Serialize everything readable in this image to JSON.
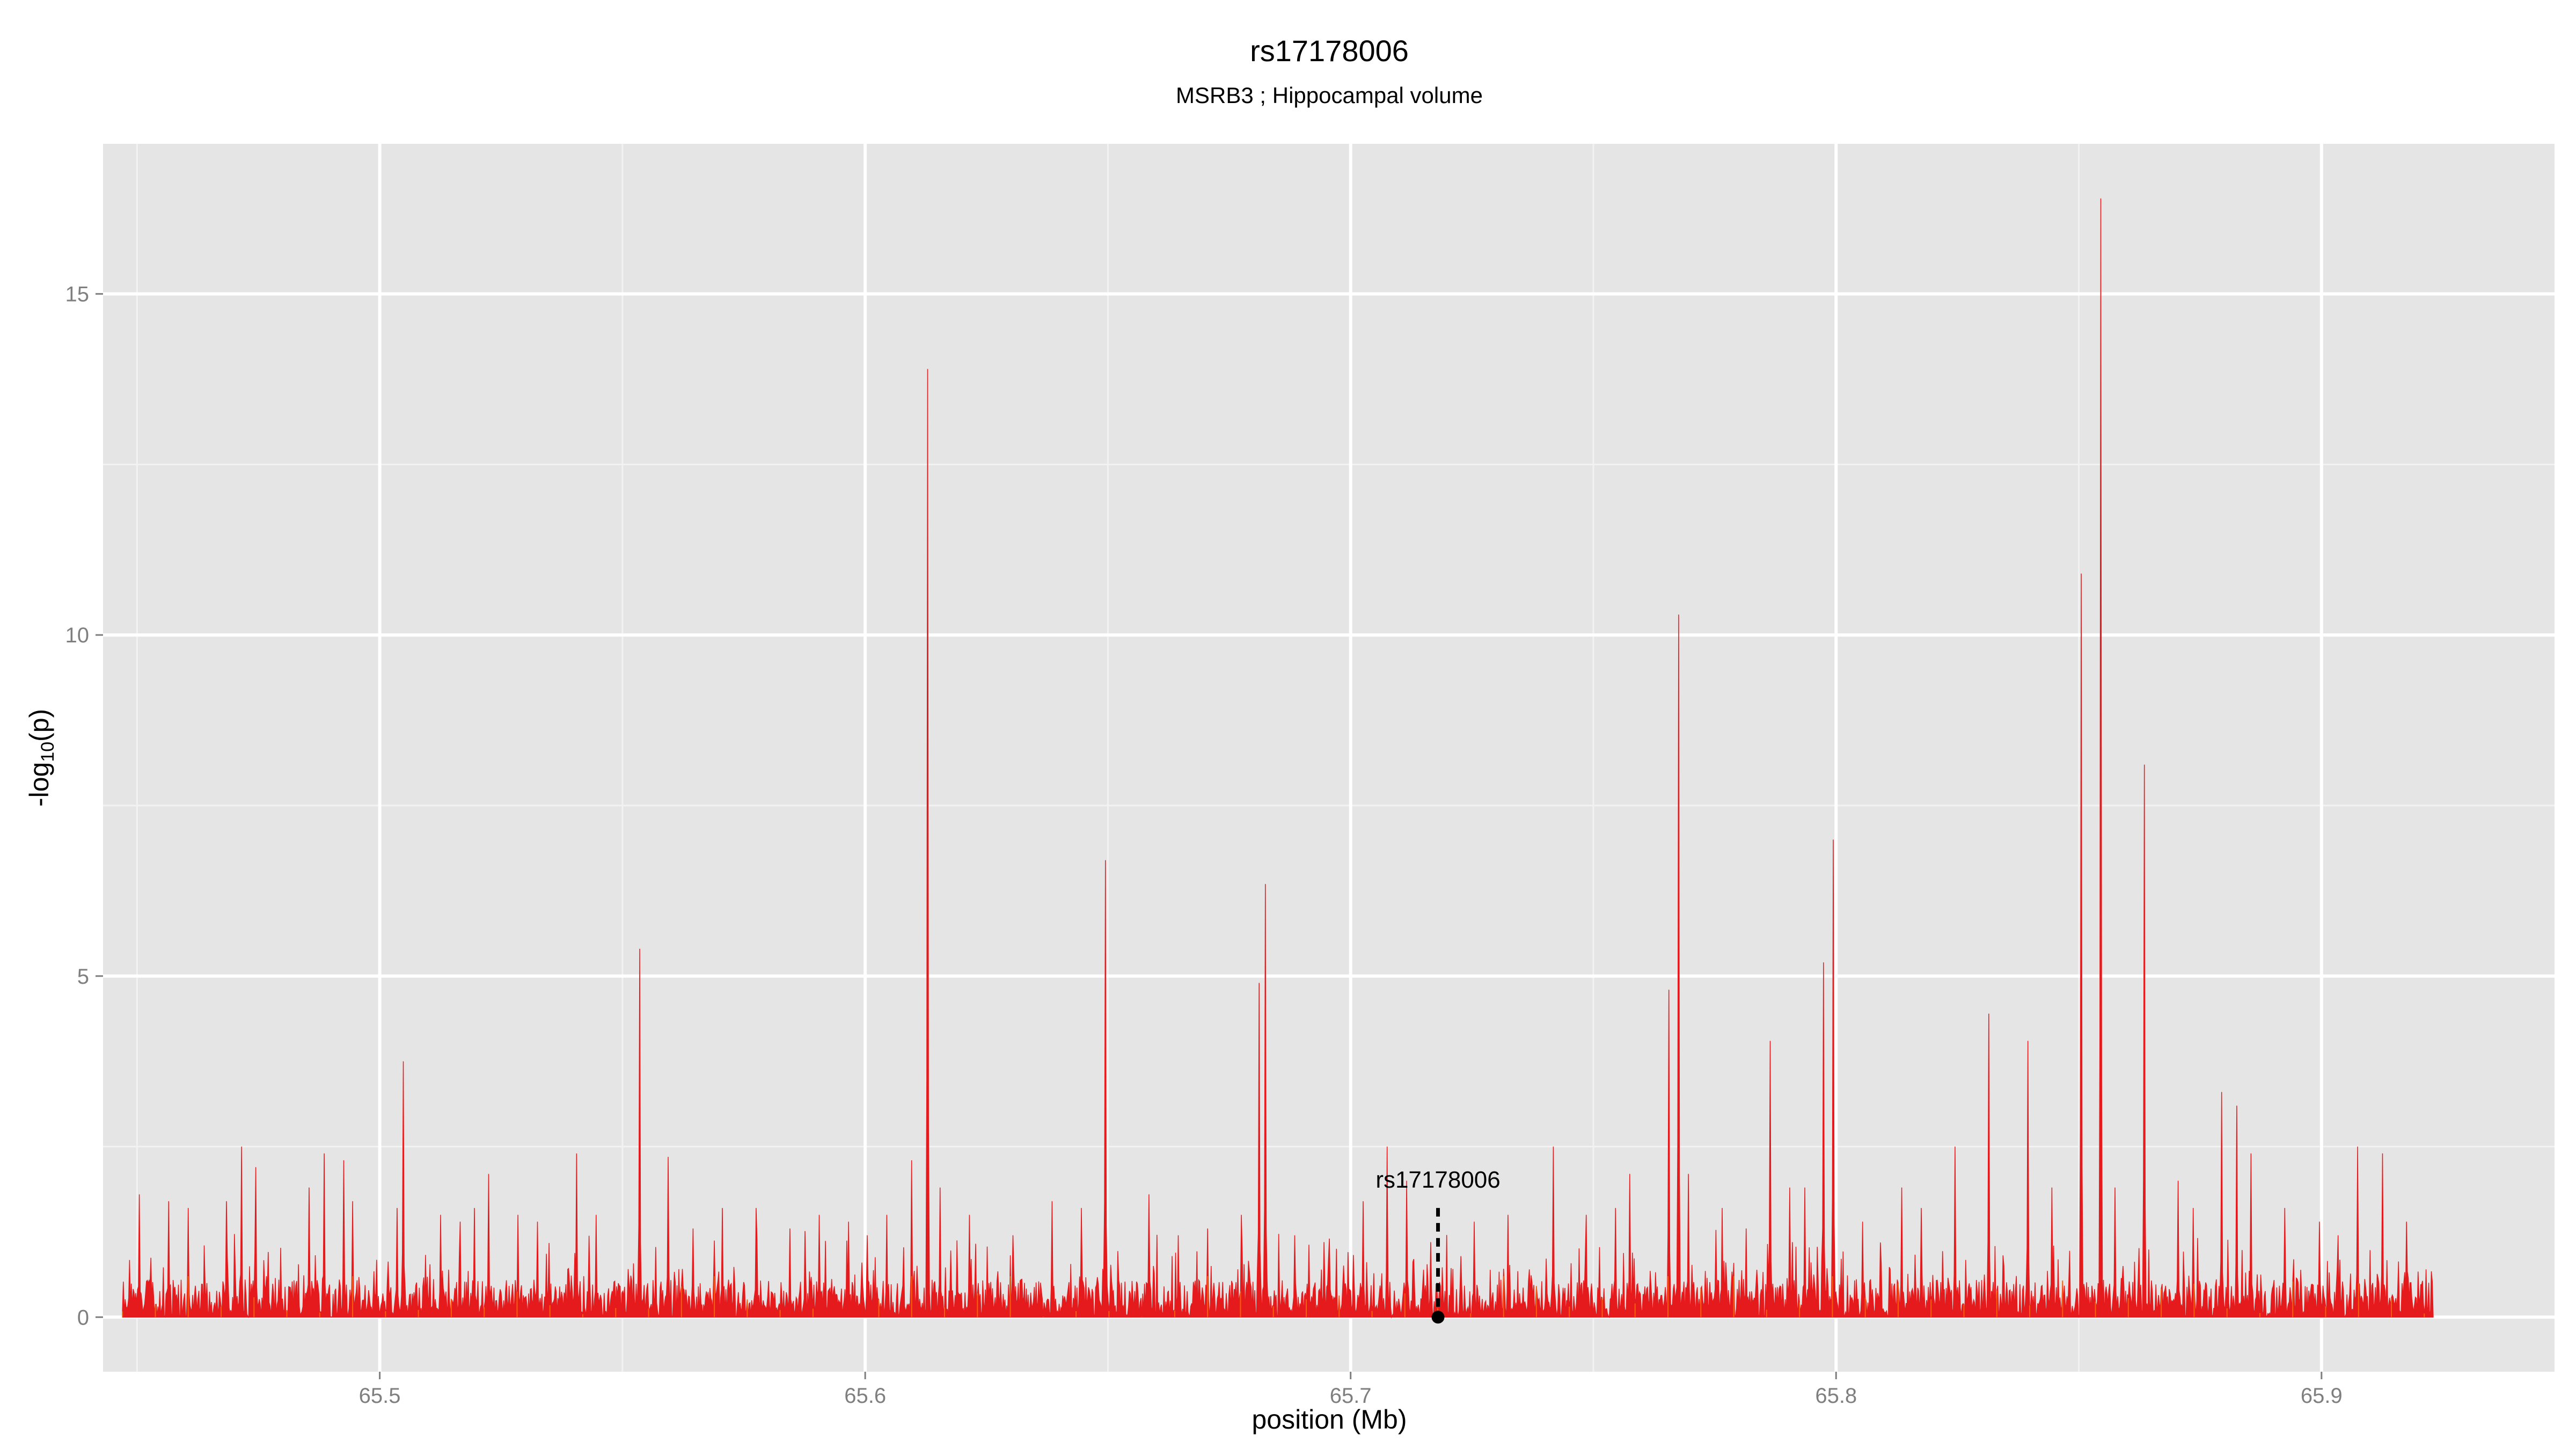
{
  "chart_data": {
    "type": "area",
    "title": "rs17178006",
    "subtitle": "MSRB3 ; Hippocampal volume",
    "xlabel": "position (Mb)",
    "ylabel_main": "-log",
    "ylabel_sub": "10",
    "ylabel_tail": "(p)",
    "xlim": [
      65.443,
      65.948
    ],
    "ylim": [
      -0.8,
      17.2
    ],
    "x_ticks": [
      65.5,
      65.6,
      65.7,
      65.8,
      65.9
    ],
    "x_tick_labels": [
      "65.5",
      "65.6",
      "65.7",
      "65.8",
      "65.9"
    ],
    "y_ticks": [
      0,
      5,
      10,
      15
    ],
    "y_tick_labels": [
      "0",
      "5",
      "10",
      "15"
    ],
    "grid": true,
    "background": "#e5e5e5",
    "fill_color": "#e41a1c",
    "secondary_colors": [
      "#ff7f00",
      "#377eb8",
      "#984ea3"
    ],
    "x_range_data": [
      65.447,
      65.923
    ],
    "peaks": [
      {
        "x": 65.4505,
        "y": 1.8
      },
      {
        "x": 65.4565,
        "y": 1.7
      },
      {
        "x": 65.4605,
        "y": 1.6
      },
      {
        "x": 65.4685,
        "y": 1.7
      },
      {
        "x": 65.4715,
        "y": 2.5
      },
      {
        "x": 65.4745,
        "y": 2.2
      },
      {
        "x": 65.4855,
        "y": 1.9
      },
      {
        "x": 65.4885,
        "y": 2.4
      },
      {
        "x": 65.4925,
        "y": 2.3
      },
      {
        "x": 65.4945,
        "y": 1.7
      },
      {
        "x": 65.5035,
        "y": 1.6
      },
      {
        "x": 65.5048,
        "y": 3.75
      },
      {
        "x": 65.5125,
        "y": 1.5
      },
      {
        "x": 65.5165,
        "y": 1.4
      },
      {
        "x": 65.5195,
        "y": 1.6
      },
      {
        "x": 65.5225,
        "y": 2.1
      },
      {
        "x": 65.5285,
        "y": 1.5
      },
      {
        "x": 65.5325,
        "y": 1.4
      },
      {
        "x": 65.5405,
        "y": 2.4
      },
      {
        "x": 65.5445,
        "y": 1.5
      },
      {
        "x": 65.5535,
        "y": 5.4
      },
      {
        "x": 65.5595,
        "y": 2.35
      },
      {
        "x": 65.5645,
        "y": 1.3
      },
      {
        "x": 65.5705,
        "y": 1.6
      },
      {
        "x": 65.5775,
        "y": 1.6
      },
      {
        "x": 65.5845,
        "y": 1.3
      },
      {
        "x": 65.5905,
        "y": 1.5
      },
      {
        "x": 65.5965,
        "y": 1.4
      },
      {
        "x": 65.6005,
        "y": 1.2
      },
      {
        "x": 65.6045,
        "y": 1.5
      },
      {
        "x": 65.6095,
        "y": 2.3
      },
      {
        "x": 65.6128,
        "y": 13.9
      },
      {
        "x": 65.6155,
        "y": 1.9
      },
      {
        "x": 65.6215,
        "y": 1.5
      },
      {
        "x": 65.6305,
        "y": 1.2
      },
      {
        "x": 65.6385,
        "y": 1.7
      },
      {
        "x": 65.6445,
        "y": 1.6
      },
      {
        "x": 65.6495,
        "y": 6.7
      },
      {
        "x": 65.6585,
        "y": 1.8
      },
      {
        "x": 65.6645,
        "y": 1.2
      },
      {
        "x": 65.6705,
        "y": 1.3
      },
      {
        "x": 65.6775,
        "y": 1.5
      },
      {
        "x": 65.6812,
        "y": 4.9
      },
      {
        "x": 65.6825,
        "y": 6.35
      },
      {
        "x": 65.6885,
        "y": 1.2
      },
      {
        "x": 65.6945,
        "y": 1.1
      },
      {
        "x": 65.7025,
        "y": 1.7
      },
      {
        "x": 65.7075,
        "y": 2.5
      },
      {
        "x": 65.7115,
        "y": 2.0
      },
      {
        "x": 65.7165,
        "y": 1.1
      },
      {
        "x": 65.7255,
        "y": 1.4
      },
      {
        "x": 65.7325,
        "y": 1.5
      },
      {
        "x": 65.7418,
        "y": 2.5
      },
      {
        "x": 65.7485,
        "y": 1.5
      },
      {
        "x": 65.7545,
        "y": 1.6
      },
      {
        "x": 65.7575,
        "y": 2.1
      },
      {
        "x": 65.7655,
        "y": 4.8
      },
      {
        "x": 65.7675,
        "y": 10.3
      },
      {
        "x": 65.7695,
        "y": 2.1
      },
      {
        "x": 65.7765,
        "y": 1.6
      },
      {
        "x": 65.7815,
        "y": 1.3
      },
      {
        "x": 65.7865,
        "y": 4.05
      },
      {
        "x": 65.7905,
        "y": 1.9
      },
      {
        "x": 65.7935,
        "y": 1.9
      },
      {
        "x": 65.7975,
        "y": 5.2
      },
      {
        "x": 65.7995,
        "y": 7.0
      },
      {
        "x": 65.8055,
        "y": 1.4
      },
      {
        "x": 65.8135,
        "y": 1.9
      },
      {
        "x": 65.8175,
        "y": 1.6
      },
      {
        "x": 65.8245,
        "y": 2.5
      },
      {
        "x": 65.8315,
        "y": 4.45
      },
      {
        "x": 65.8395,
        "y": 4.05
      },
      {
        "x": 65.8445,
        "y": 1.9
      },
      {
        "x": 65.8505,
        "y": 10.9
      },
      {
        "x": 65.8545,
        "y": 16.4
      },
      {
        "x": 65.8575,
        "y": 1.9
      },
      {
        "x": 65.8635,
        "y": 8.1
      },
      {
        "x": 65.8705,
        "y": 2.0
      },
      {
        "x": 65.8735,
        "y": 1.6
      },
      {
        "x": 65.8795,
        "y": 3.3
      },
      {
        "x": 65.8825,
        "y": 3.1
      },
      {
        "x": 65.8855,
        "y": 2.4
      },
      {
        "x": 65.8925,
        "y": 1.6
      },
      {
        "x": 65.8995,
        "y": 1.4
      },
      {
        "x": 65.9035,
        "y": 1.2
      },
      {
        "x": 65.9075,
        "y": 2.5
      },
      {
        "x": 65.9125,
        "y": 2.4
      },
      {
        "x": 65.9175,
        "y": 1.4
      },
      {
        "x": 65.9215,
        "y": 0.7
      }
    ],
    "annotation": {
      "label": "rs17178006",
      "x": 65.718,
      "y": 0,
      "line_top": 1.6
    }
  }
}
